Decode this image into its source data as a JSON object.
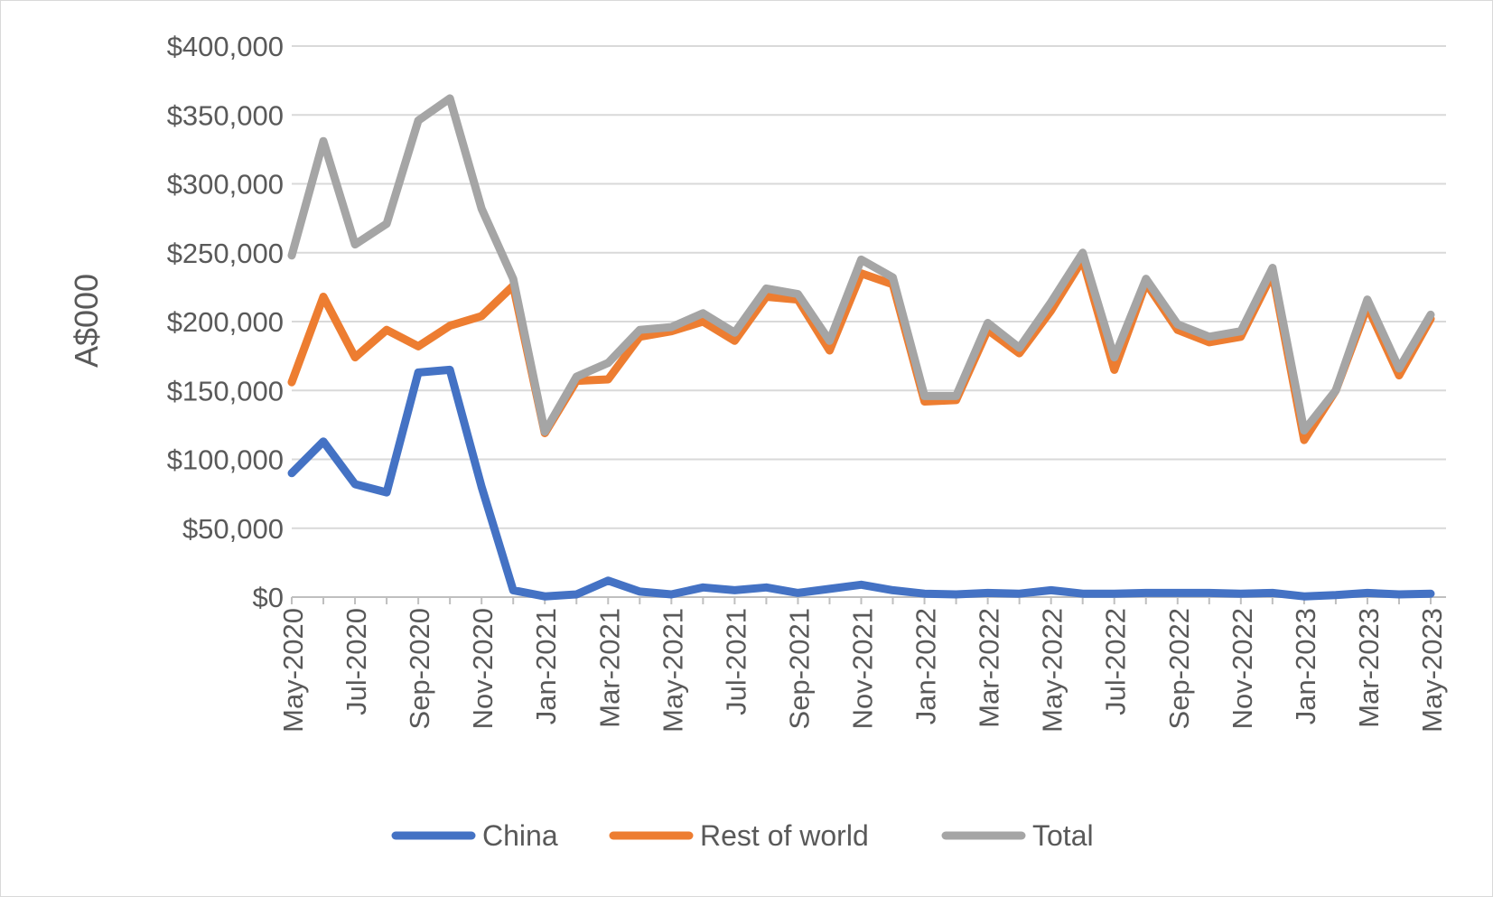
{
  "chart_data": {
    "type": "line",
    "title": "",
    "xlabel": "",
    "ylabel": "A$000",
    "ylim": [
      0,
      400000
    ],
    "yticks": [
      0,
      50000,
      100000,
      150000,
      200000,
      250000,
      300000,
      350000,
      400000
    ],
    "ytick_labels": [
      "$0",
      "$50,000",
      "$100,000",
      "$150,000",
      "$200,000",
      "$250,000",
      "$300,000",
      "$350,000",
      "$400,000"
    ],
    "grid": "horizontal",
    "legend_position": "bottom",
    "categories": [
      "May-2020",
      "Jun-2020",
      "Jul-2020",
      "Aug-2020",
      "Sep-2020",
      "Oct-2020",
      "Nov-2020",
      "Dec-2020",
      "Jan-2021",
      "Feb-2021",
      "Mar-2021",
      "Apr-2021",
      "May-2021",
      "Jun-2021",
      "Jul-2021",
      "Aug-2021",
      "Sep-2021",
      "Oct-2021",
      "Nov-2021",
      "Dec-2021",
      "Jan-2022",
      "Feb-2022",
      "Mar-2022",
      "Apr-2022",
      "May-2022",
      "Jun-2022",
      "Jul-2022",
      "Aug-2022",
      "Sep-2022",
      "Oct-2022",
      "Nov-2022",
      "Dec-2022",
      "Jan-2023",
      "Feb-2023",
      "Mar-2023",
      "Apr-2023",
      "May-2023"
    ],
    "x_tick_labels": [
      "May-2020",
      "Jul-2020",
      "Sep-2020",
      "Nov-2020",
      "Jan-2021",
      "Mar-2021",
      "May-2021",
      "Jul-2021",
      "Sep-2021",
      "Nov-2021",
      "Jan-2022",
      "Mar-2022",
      "May-2022",
      "Jul-2022",
      "Sep-2022",
      "Nov-2022",
      "Jan-2023",
      "Mar-2023",
      "May-2023"
    ],
    "series": [
      {
        "name": "China",
        "color": "#4472c4",
        "values": [
          90000,
          113000,
          82000,
          76000,
          163000,
          165000,
          80000,
          5000,
          500,
          2000,
          12000,
          4000,
          2000,
          7000,
          5000,
          7000,
          3000,
          6000,
          9000,
          5000,
          2500,
          2000,
          3000,
          2500,
          5000,
          2500,
          2500,
          3000,
          3000,
          3000,
          2500,
          3000,
          500,
          1500,
          3000,
          2000,
          2500
        ]
      },
      {
        "name": "Rest of world",
        "color": "#ed7d31",
        "values": [
          156000,
          218000,
          174000,
          194000,
          182000,
          197000,
          204000,
          226000,
          119000,
          157000,
          158000,
          189000,
          193000,
          200000,
          186000,
          218000,
          216000,
          179000,
          235000,
          227000,
          142000,
          143000,
          194000,
          177000,
          208000,
          245000,
          165000,
          228000,
          194000,
          185000,
          189000,
          235000,
          114000,
          150000,
          211000,
          161000,
          202000
        ]
      },
      {
        "name": "Total",
        "color": "#a5a5a5",
        "values": [
          248000,
          331000,
          256000,
          271000,
          346000,
          362000,
          282000,
          231000,
          120000,
          160000,
          170000,
          194000,
          196000,
          206000,
          192000,
          224000,
          220000,
          186000,
          245000,
          232000,
          146000,
          146000,
          199000,
          181000,
          214000,
          250000,
          174000,
          231000,
          198000,
          189000,
          193000,
          239000,
          121000,
          150000,
          216000,
          166000,
          205000
        ]
      }
    ]
  }
}
